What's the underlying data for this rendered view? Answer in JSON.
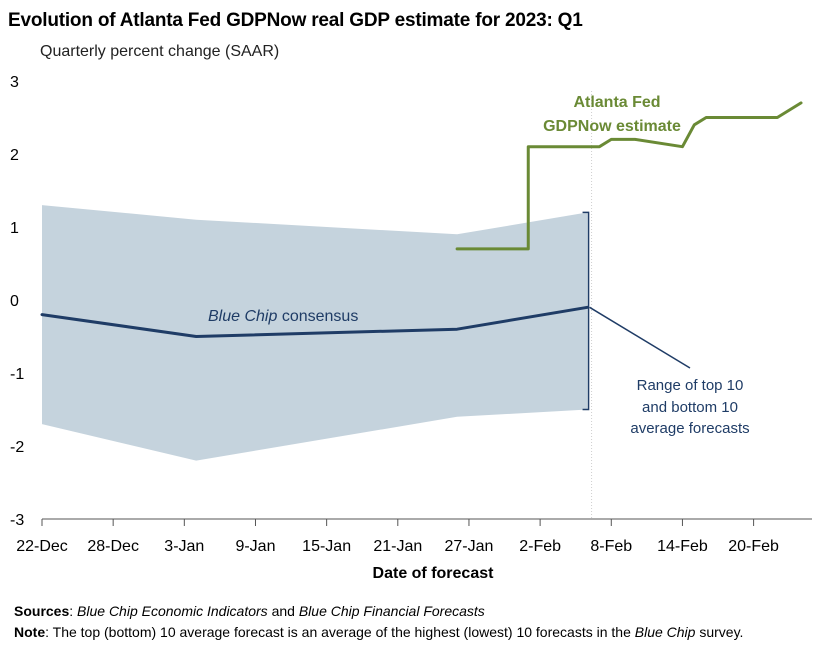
{
  "chart_data": {
    "type": "line",
    "title": "Evolution of Atlanta Fed GDPNow real GDP estimate for 2023: Q1",
    "subtitle": "Quarterly percent change (SAAR)",
    "xlabel": "Date of forecast",
    "ylabel": "",
    "ylim": [
      -3,
      3
    ],
    "yticks": [
      "3",
      "2",
      "1",
      "0",
      "-1",
      "-2",
      "-3"
    ],
    "xticks": [
      "22-Dec",
      "28-Dec",
      "3-Jan",
      "9-Jan",
      "15-Jan",
      "21-Jan",
      "27-Jan",
      "2-Feb",
      "8-Feb",
      "14-Feb",
      "20-Feb"
    ],
    "grid": false,
    "range_band": {
      "name": "Range of top 10 and bottom 10 average forecasts",
      "points": [
        {
          "x": "2022-12-22",
          "top": 1.3,
          "bottom": -1.7
        },
        {
          "x": "2023-01-04",
          "top": 1.1,
          "bottom": -2.2
        },
        {
          "x": "2023-01-26",
          "top": 0.9,
          "bottom": -1.6
        },
        {
          "x": "2023-02-06",
          "top": 1.2,
          "bottom": -1.5
        }
      ]
    },
    "series": [
      {
        "name": "Blue Chip consensus",
        "color": "#1f3c66",
        "points": [
          {
            "x": "2022-12-22",
            "y": -0.2
          },
          {
            "x": "2023-01-04",
            "y": -0.5
          },
          {
            "x": "2023-01-26",
            "y": -0.4
          },
          {
            "x": "2023-02-06",
            "y": -0.1
          }
        ]
      },
      {
        "name": "Atlanta Fed GDPNow estimate",
        "color": "#6a8a35",
        "points": [
          {
            "x": "2023-01-26",
            "y": 0.7
          },
          {
            "x": "2023-02-01",
            "y": 0.7
          },
          {
            "x": "2023-02-01",
            "y": 2.1
          },
          {
            "x": "2023-02-07",
            "y": 2.1
          },
          {
            "x": "2023-02-08",
            "y": 2.2
          },
          {
            "x": "2023-02-10",
            "y": 2.2
          },
          {
            "x": "2023-02-14",
            "y": 2.1
          },
          {
            "x": "2023-02-15",
            "y": 2.4
          },
          {
            "x": "2023-02-16",
            "y": 2.5
          },
          {
            "x": "2023-02-22",
            "y": 2.5
          },
          {
            "x": "2023-02-24",
            "y": 2.7
          }
        ]
      }
    ],
    "annotations": {
      "gdpnow_line1": "Atlanta Fed",
      "gdpnow_line2": "GDPNow estimate",
      "consensus_italic": "Blue Chip",
      "consensus_rest": " consensus",
      "range_line1": "Range of top 10",
      "range_line2": "and bottom 10",
      "range_line3": "average forecasts"
    },
    "colors": {
      "band": "#c5d3dd",
      "consensus": "#1f3c66",
      "gdpnow": "#6a8a35",
      "annotation_blue": "#1f3c66"
    }
  },
  "footnotes": {
    "sources_label": "Sources",
    "sources_sep": ": ",
    "sources_italic1": "Blue Chip Economic Indicators",
    "sources_and": " and ",
    "sources_italic2": "Blue Chip Financial Forecasts",
    "note_label": "Note",
    "note_text": ": The top (bottom) 10 average forecast is an average of the highest (lowest) 10 forecasts in the ",
    "note_italic": "Blue Chip",
    "note_end": " survey."
  }
}
